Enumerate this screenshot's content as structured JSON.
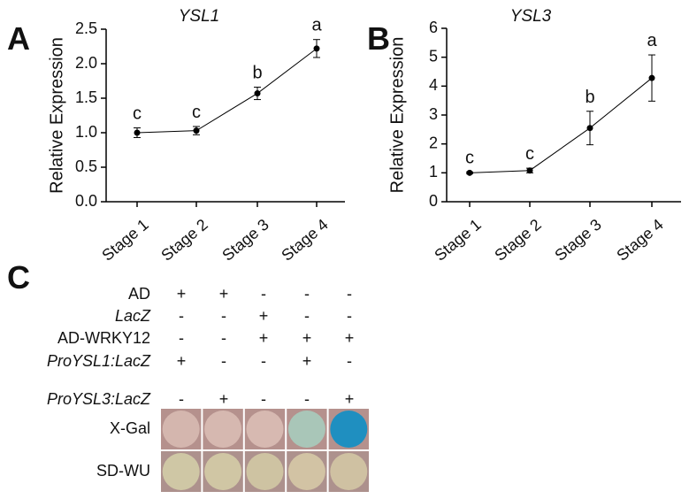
{
  "chart_data": [
    {
      "type": "line",
      "panel": "A",
      "title": "YSL1",
      "ylabel": "Relative Expression",
      "categories": [
        "Stage 1",
        "Stage 2",
        "Stage 3",
        "Stage 4"
      ],
      "values": [
        1.0,
        1.03,
        1.57,
        2.22
      ],
      "errors": [
        0.07,
        0.06,
        0.09,
        0.13
      ],
      "annotations": [
        "c",
        "c",
        "b",
        "a"
      ],
      "color": "#000000",
      "ylim": [
        0,
        2.5
      ],
      "yticks": [
        {
          "value": 0,
          "label": "0.0"
        },
        0.5,
        {
          "value": 1,
          "label": "1.0"
        },
        1.5,
        {
          "value": 2,
          "label": "2.0"
        },
        2.5
      ]
    },
    {
      "type": "line",
      "panel": "B",
      "title": "YSL3",
      "ylabel": "Relative Expression",
      "categories": [
        "Stage 1",
        "Stage 2",
        "Stage 3",
        "Stage 4"
      ],
      "values": [
        1.0,
        1.08,
        2.55,
        4.28
      ],
      "errors": [
        0.03,
        0.08,
        0.58,
        0.8
      ],
      "annotations": [
        "c",
        "c",
        "b",
        "a"
      ],
      "color": "#000000",
      "ylim": [
        0,
        6
      ],
      "yticks": [
        0,
        1,
        2,
        3,
        4,
        5,
        6
      ]
    }
  ],
  "panel_c": {
    "panel": "C",
    "rows": [
      {
        "label": "AD",
        "italic": false,
        "signs": [
          "+",
          "+",
          "-",
          "-",
          "-"
        ]
      },
      {
        "label": "LacZ",
        "italic": true,
        "signs": [
          "-",
          "-",
          "+",
          "-",
          "-"
        ]
      },
      {
        "label": "AD-WRKY12",
        "italic": false,
        "signs": [
          "-",
          "-",
          "+",
          "+",
          "+"
        ]
      },
      {
        "label": "ProYSL1:LacZ",
        "italic": true,
        "signs": [
          "+",
          "-",
          "-",
          "+",
          "-"
        ]
      },
      {
        "label": "ProYSL3:LacZ",
        "italic": true,
        "signs": [
          "-",
          "+",
          "-",
          "-",
          "+"
        ]
      }
    ],
    "assays": [
      "X-Gal",
      "SD-WU"
    ]
  }
}
